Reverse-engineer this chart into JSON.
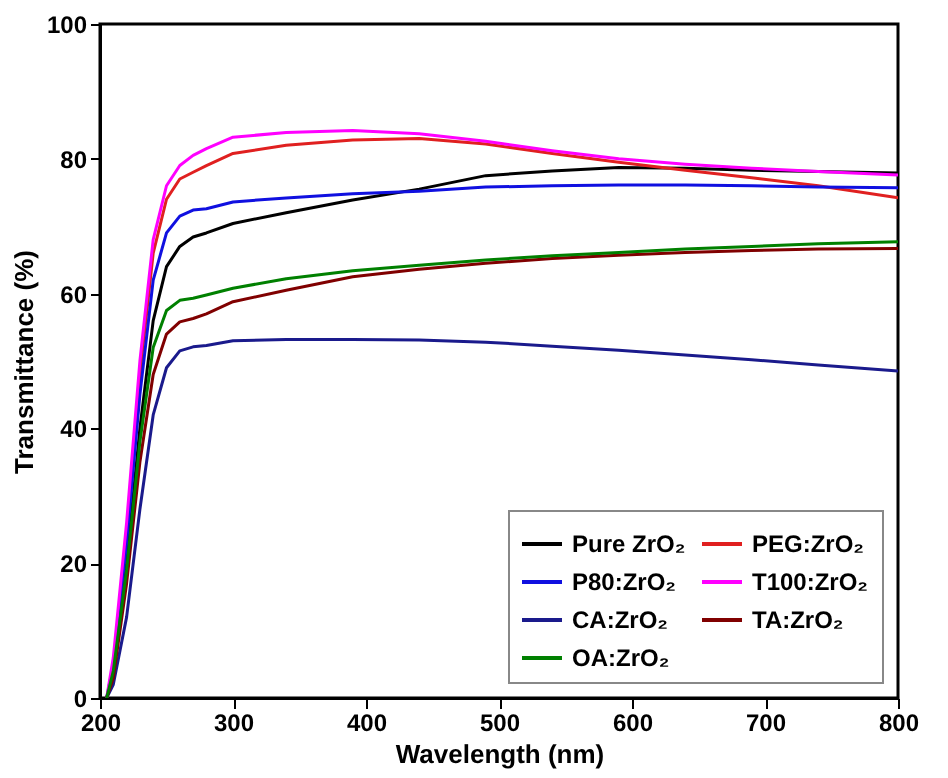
{
  "chart_data": {
    "type": "line",
    "xlabel": "Wavelength (nm)",
    "ylabel": "Transmittance (%)",
    "xlim": [
      200,
      800
    ],
    "ylim": [
      0,
      100
    ],
    "xticks": [
      200,
      300,
      400,
      500,
      600,
      700,
      800
    ],
    "yticks": [
      0,
      20,
      40,
      60,
      80,
      100
    ],
    "grid": false,
    "legend": "bottom right",
    "line_style": "solid",
    "marker": "none",
    "x": [
      205,
      210,
      220,
      230,
      240,
      250,
      260,
      270,
      280,
      300,
      340,
      390,
      440,
      490,
      540,
      590,
      640,
      690,
      740,
      800
    ],
    "series": [
      {
        "name": "Pure ZrO₂",
        "color": "#000000",
        "values": [
          0,
          4,
          20,
          40,
          56,
          64,
          67,
          68.4,
          69,
          70.4,
          72,
          73.9,
          75.5,
          77.5,
          78.2,
          78.7,
          78.6,
          78.3,
          78.1,
          77.9
        ]
      },
      {
        "name": "PEG:ZrO₂",
        "color": "#e02020",
        "values": [
          null,
          null,
          24,
          48,
          66,
          74,
          77,
          78,
          79,
          80.8,
          82,
          82.8,
          83,
          82.2,
          80.8,
          79.5,
          78.3,
          77.2,
          76,
          74.2
        ]
      },
      {
        "name": "P80:ZrO₂",
        "color": "#1010e0",
        "values": [
          0,
          5,
          23,
          45,
          62,
          69,
          71.5,
          72.4,
          72.6,
          73.6,
          74.2,
          74.8,
          75.2,
          75.8,
          76,
          76.1,
          76.1,
          76,
          75.8,
          75.7
        ]
      },
      {
        "name": "T100:ZrO₂",
        "color": "#ff00ff",
        "values": [
          0,
          6,
          26,
          50,
          68,
          76,
          79,
          80.5,
          81.5,
          83.2,
          83.9,
          84.2,
          83.7,
          82.6,
          81.2,
          80,
          79.2,
          78.6,
          78.1,
          77.6
        ]
      },
      {
        "name": "CA:ZrO₂",
        "color": "#1a1a8c",
        "values": [
          0,
          2,
          12,
          28,
          42,
          49,
          51.5,
          52.1,
          52.3,
          53,
          53.2,
          53.2,
          53.1,
          52.8,
          52.2,
          51.6,
          50.9,
          50.2,
          49.4,
          48.5
        ]
      },
      {
        "name": "TA:ZrO₂",
        "color": "#800000",
        "values": [
          0,
          3,
          17,
          35,
          48,
          54,
          55.8,
          56.3,
          57,
          58.8,
          60.5,
          62.5,
          63.6,
          64.5,
          65.2,
          65.7,
          66.1,
          66.4,
          66.6,
          66.7
        ]
      },
      {
        "name": "OA:ZrO₂",
        "color": "#008000",
        "values": [
          0,
          4,
          19,
          38,
          52,
          57.5,
          59,
          59.3,
          59.8,
          60.8,
          62.2,
          63.4,
          64.2,
          65,
          65.6,
          66.1,
          66.6,
          67,
          67.4,
          67.7
        ]
      }
    ]
  }
}
